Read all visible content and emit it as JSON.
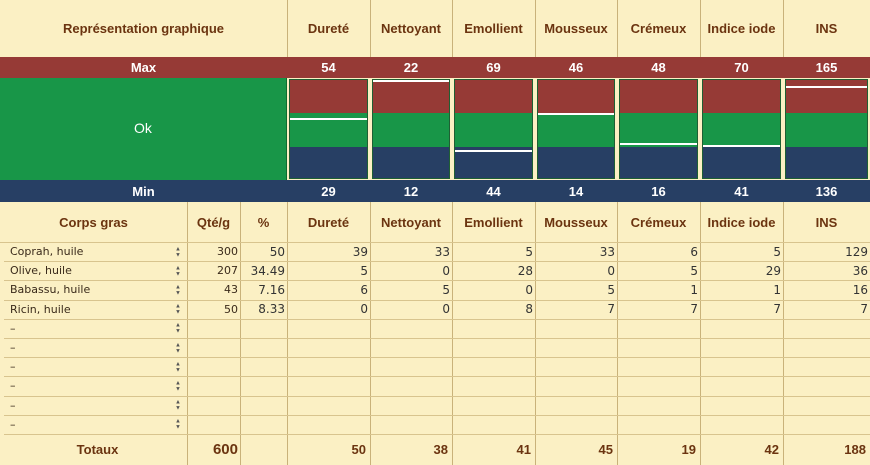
{
  "graph": {
    "title": "Représentation graphique",
    "ok_label": "Ok",
    "max_label": "Max",
    "min_label": "Min",
    "columns": [
      {
        "label": "Dureté",
        "max": "54",
        "min": "29",
        "value": 50
      },
      {
        "label": "Nettoyant",
        "max": "22",
        "min": "12",
        "value": 38
      },
      {
        "label": "Emollient",
        "max": "69",
        "min": "44",
        "value": 41
      },
      {
        "label": "Mousseux",
        "max": "46",
        "min": "14",
        "value": 45
      },
      {
        "label": "Crémeux",
        "max": "48",
        "min": "16",
        "value": 19
      },
      {
        "label": "Indice iode",
        "max": "70",
        "min": "41",
        "value": 42
      },
      {
        "label": "INS",
        "max": "165",
        "min": "136",
        "value": 188
      }
    ]
  },
  "table": {
    "headers": {
      "name": "Corps gras",
      "qty": "Qté/g",
      "pct": "%",
      "cols": [
        "Dureté",
        "Nettoyant",
        "Emollient",
        "Mousseux",
        "Crémeux",
        "Indice iode",
        "INS"
      ]
    },
    "rows": [
      {
        "name": "Coprah, huile",
        "qty": "300",
        "pct": "50",
        "vals": [
          "39",
          "33",
          "5",
          "33",
          "6",
          "5",
          "129"
        ]
      },
      {
        "name": "Olive, huile",
        "qty": "207",
        "pct": "34.49",
        "vals": [
          "5",
          "0",
          "28",
          "0",
          "5",
          "29",
          "36"
        ]
      },
      {
        "name": "Babassu, huile",
        "qty": "43",
        "pct": "7.16",
        "vals": [
          "6",
          "5",
          "0",
          "5",
          "1",
          "1",
          "16"
        ]
      },
      {
        "name": "Ricin, huile",
        "qty": "50",
        "pct": "8.33",
        "vals": [
          "0",
          "0",
          "8",
          "7",
          "7",
          "7",
          "7"
        ]
      },
      {
        "name": "–",
        "qty": "",
        "pct": "",
        "vals": [
          "",
          "",
          "",
          "",
          "",
          "",
          ""
        ]
      },
      {
        "name": "–",
        "qty": "",
        "pct": "",
        "vals": [
          "",
          "",
          "",
          "",
          "",
          "",
          ""
        ]
      },
      {
        "name": "–",
        "qty": "",
        "pct": "",
        "vals": [
          "",
          "",
          "",
          "",
          "",
          "",
          ""
        ]
      },
      {
        "name": "–",
        "qty": "",
        "pct": "",
        "vals": [
          "",
          "",
          "",
          "",
          "",
          "",
          ""
        ]
      },
      {
        "name": "–",
        "qty": "",
        "pct": "",
        "vals": [
          "",
          "",
          "",
          "",
          "",
          "",
          ""
        ]
      },
      {
        "name": "–",
        "qty": "",
        "pct": "",
        "vals": [
          "",
          "",
          "",
          "",
          "",
          "",
          ""
        ]
      }
    ],
    "totals": {
      "label": "Totaux",
      "qty": "600",
      "vals": [
        "50",
        "38",
        "41",
        "45",
        "19",
        "42",
        "188"
      ]
    }
  },
  "colors": {
    "max_band": "#963a36",
    "ok_band": "#189648",
    "min_band": "#273f64",
    "background": "#fbf0c4"
  }
}
